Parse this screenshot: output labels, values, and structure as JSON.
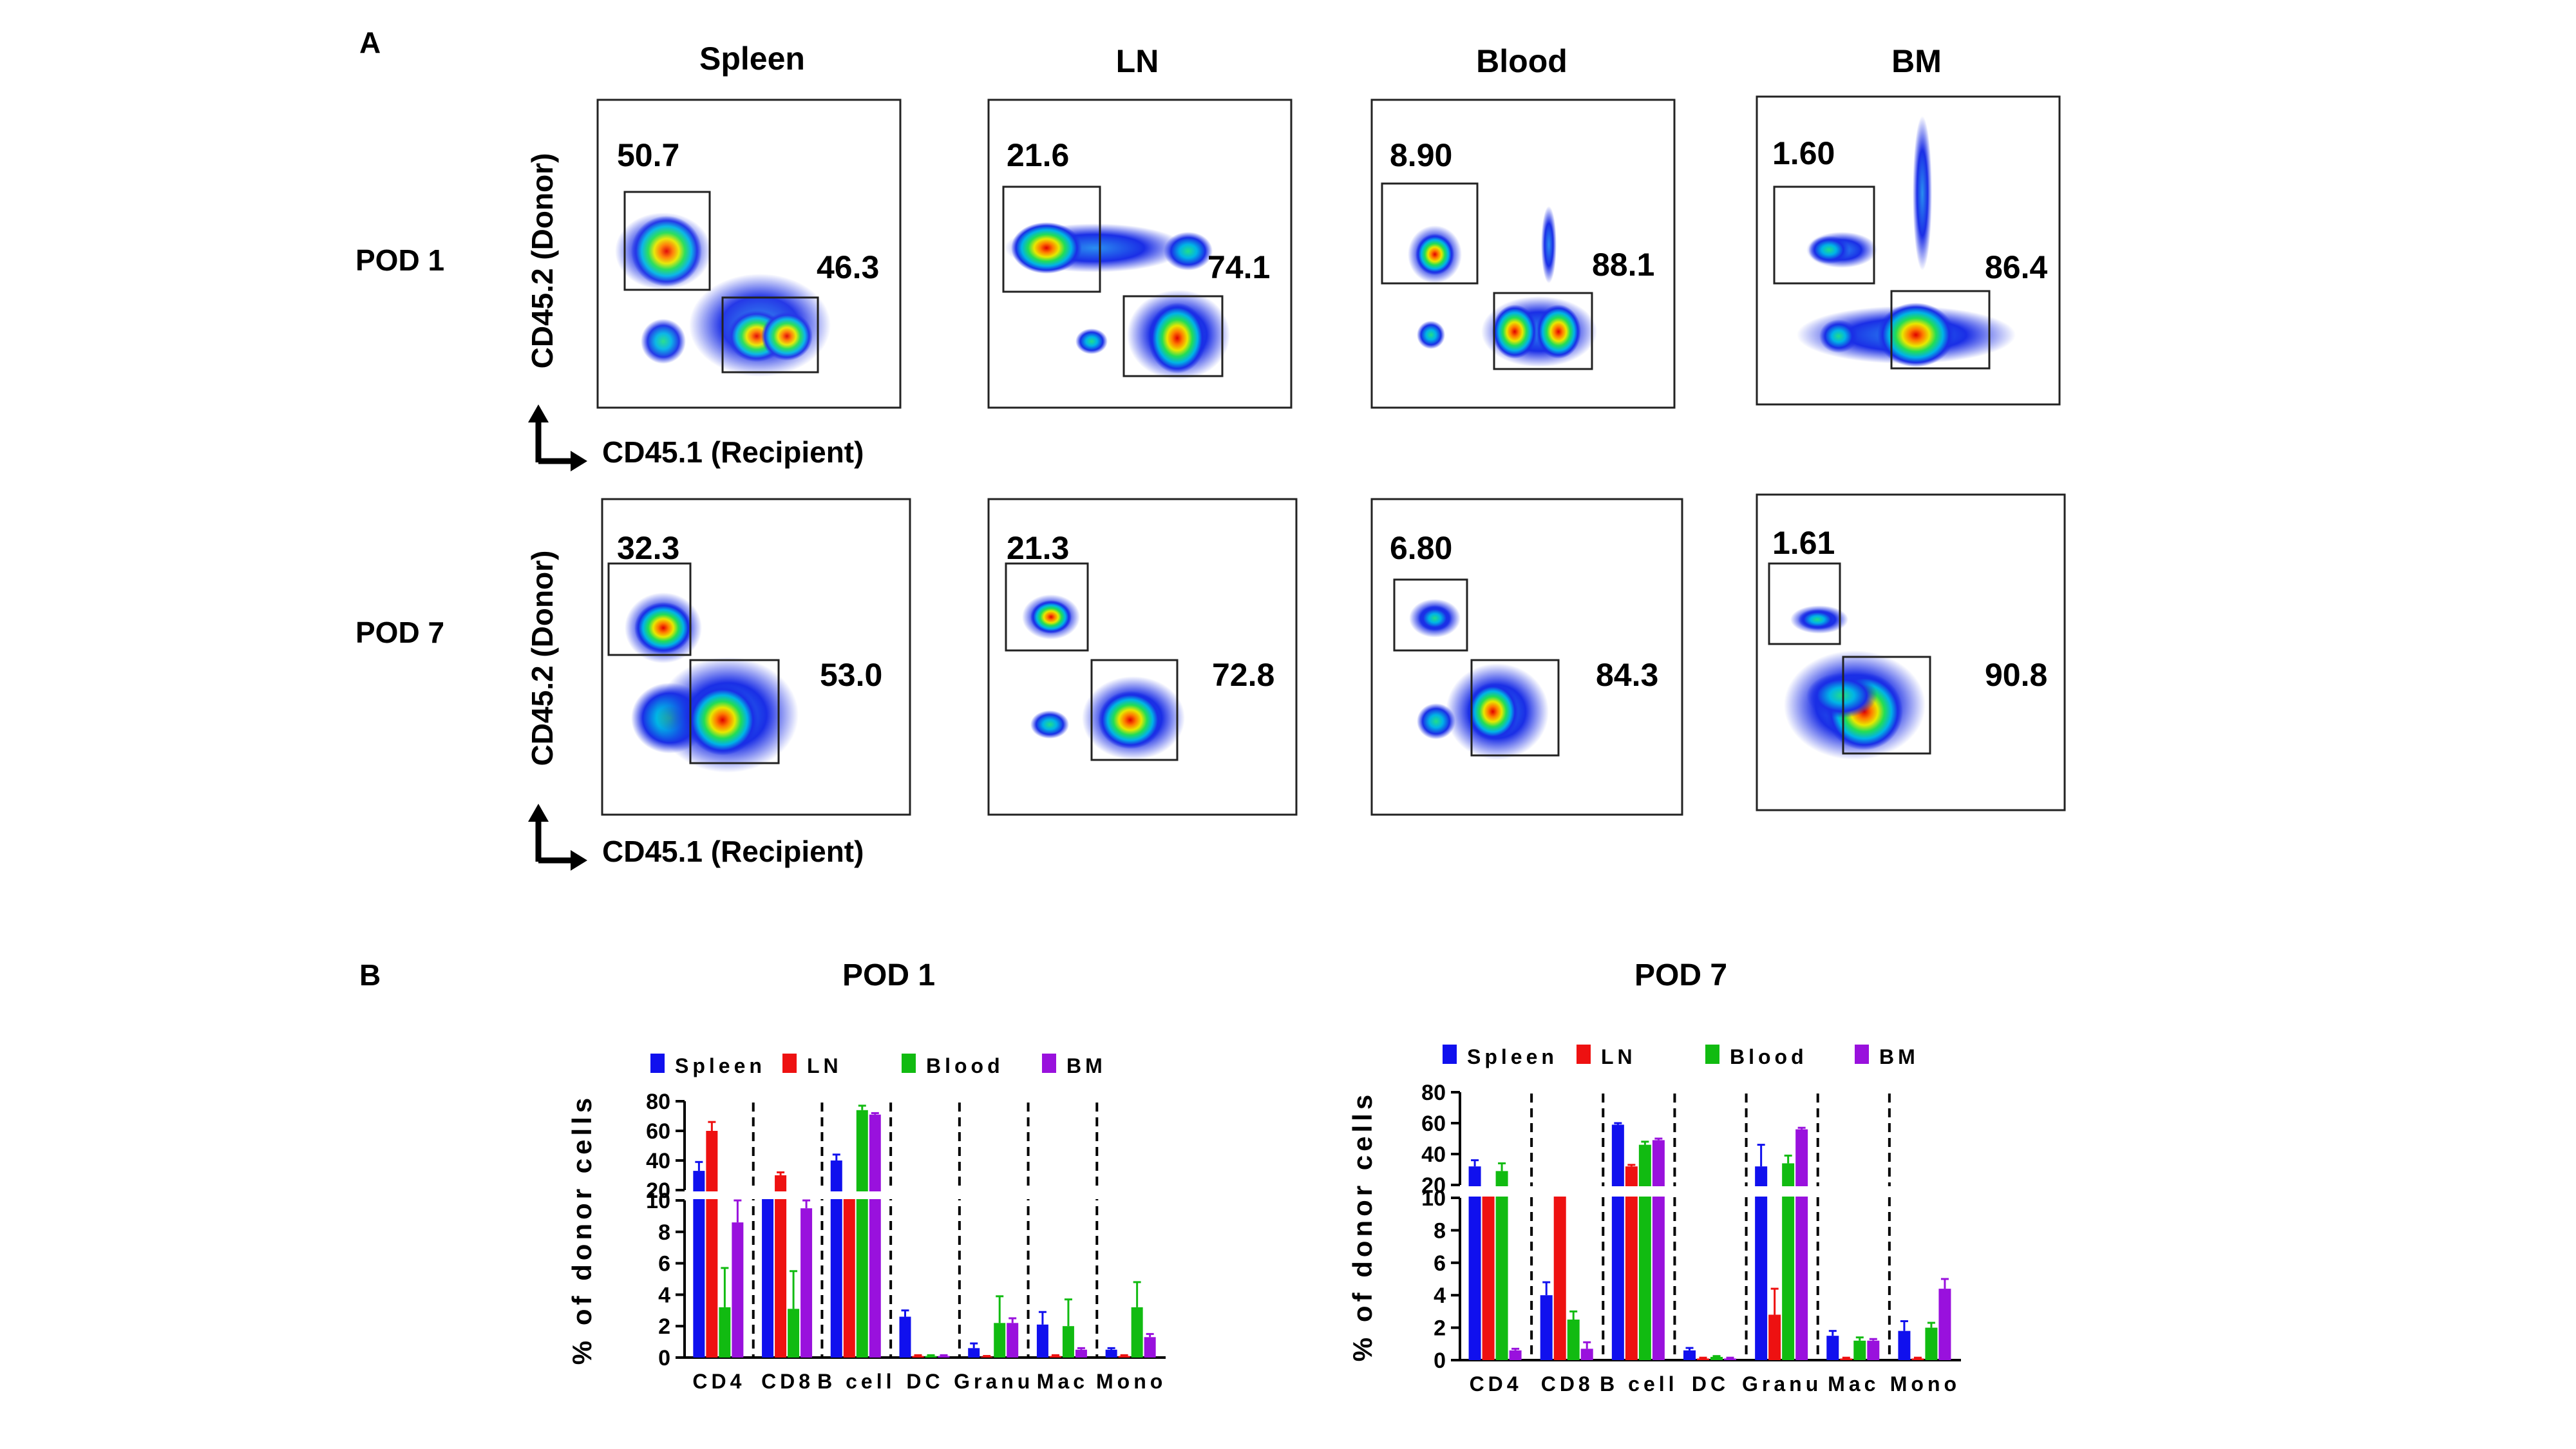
{
  "panel_a": {
    "letter": "A",
    "columns": [
      "Spleen",
      "LN",
      "Blood",
      "BM"
    ],
    "rows": [
      {
        "label": "POD 1",
        "plots": [
          {
            "donor_pct": "50.7",
            "recipient_pct": "46.3"
          },
          {
            "donor_pct": "21.6",
            "recipient_pct": "74.1"
          },
          {
            "donor_pct": "8.90",
            "recipient_pct": "88.1"
          },
          {
            "donor_pct": "1.60",
            "recipient_pct": "86.4"
          }
        ]
      },
      {
        "label": "POD 7",
        "plots": [
          {
            "donor_pct": "32.3",
            "recipient_pct": "53.0"
          },
          {
            "donor_pct": "21.3",
            "recipient_pct": "72.8"
          },
          {
            "donor_pct": "6.80",
            "recipient_pct": "84.3"
          },
          {
            "donor_pct": "1.61",
            "recipient_pct": "90.8"
          }
        ]
      }
    ],
    "y_axis_label": "CD45.2 (Donor)",
    "x_axis_label": "CD45.1 (Recipient)"
  },
  "panel_b": {
    "letter": "B"
  },
  "chart_data": [
    {
      "type": "bar",
      "title": "POD 1",
      "ylabel": "% of donor cells",
      "xlabel": "",
      "y_axis": "broken",
      "ylim_lower": [
        0,
        10
      ],
      "ylim_upper": [
        20,
        80
      ],
      "yticks_lower": [
        "0",
        "2",
        "4",
        "6",
        "8",
        "10"
      ],
      "yticks_upper": [
        "20",
        "40",
        "60",
        "80"
      ],
      "categories": [
        "CD4",
        "CD8",
        "B cell",
        "DC",
        "Granu",
        "Mac",
        "Mono"
      ],
      "legend_position": "top",
      "series": [
        {
          "name": "Spleen",
          "color": "#1010ee",
          "values": [
            33,
            14,
            40,
            2.6,
            0.6,
            2.1,
            0.5
          ],
          "errors": [
            6,
            1,
            4,
            0.4,
            0.3,
            0.8,
            0.1
          ]
        },
        {
          "name": "LN",
          "color": "#ee1111",
          "values": [
            60,
            30,
            12,
            0.1,
            0.05,
            0.1,
            0.1
          ],
          "errors": [
            6,
            2,
            3,
            0.05,
            0.05,
            0.05,
            0.05
          ]
        },
        {
          "name": "Blood",
          "color": "#11bb11",
          "values": [
            3.2,
            3.1,
            74,
            0.1,
            2.2,
            2.0,
            3.2
          ],
          "errors": [
            2.5,
            2.4,
            3,
            0.05,
            1.7,
            1.7,
            1.6
          ]
        },
        {
          "name": "BM",
          "color": "#9911dd",
          "values": [
            8.6,
            9.5,
            71,
            0.1,
            2.2,
            0.5,
            1.3
          ],
          "errors": [
            1.4,
            0.5,
            1,
            0.05,
            0.3,
            0.1,
            0.2
          ]
        }
      ]
    },
    {
      "type": "bar",
      "title": "POD 7",
      "ylabel": "% of donor cells",
      "xlabel": "",
      "y_axis": "broken",
      "ylim_lower": [
        0,
        10
      ],
      "ylim_upper": [
        20,
        80
      ],
      "yticks_lower": [
        "0",
        "2",
        "4",
        "6",
        "8",
        "10"
      ],
      "yticks_upper": [
        "20",
        "40",
        "60",
        "80"
      ],
      "categories": [
        "CD4",
        "CD8",
        "B cell",
        "DC",
        "Granu",
        "Mac",
        "Mono"
      ],
      "legend_position": "top",
      "series": [
        {
          "name": "Spleen",
          "color": "#1010ee",
          "values": [
            32,
            4.0,
            59,
            0.6,
            32,
            1.5,
            1.8
          ],
          "errors": [
            4,
            0.8,
            1,
            0.15,
            14,
            0.3,
            0.6
          ]
        },
        {
          "name": "LN",
          "color": "#ee1111",
          "values": [
            14,
            14,
            32,
            0.1,
            2.8,
            0.1,
            0.1
          ],
          "errors": [
            1,
            1,
            1,
            0.05,
            1.6,
            0.05,
            0.05
          ]
        },
        {
          "name": "Blood",
          "color": "#11bb11",
          "values": [
            29,
            2.5,
            46,
            0.2,
            34,
            1.2,
            2.0
          ],
          "errors": [
            5,
            0.5,
            2,
            0.05,
            5,
            0.2,
            0.3
          ]
        },
        {
          "name": "BM",
          "color": "#9911dd",
          "values": [
            0.6,
            0.7,
            49,
            0.1,
            56,
            1.2,
            4.4
          ],
          "errors": [
            0.1,
            0.4,
            1,
            0.05,
            1,
            0.1,
            0.6
          ]
        }
      ]
    }
  ]
}
